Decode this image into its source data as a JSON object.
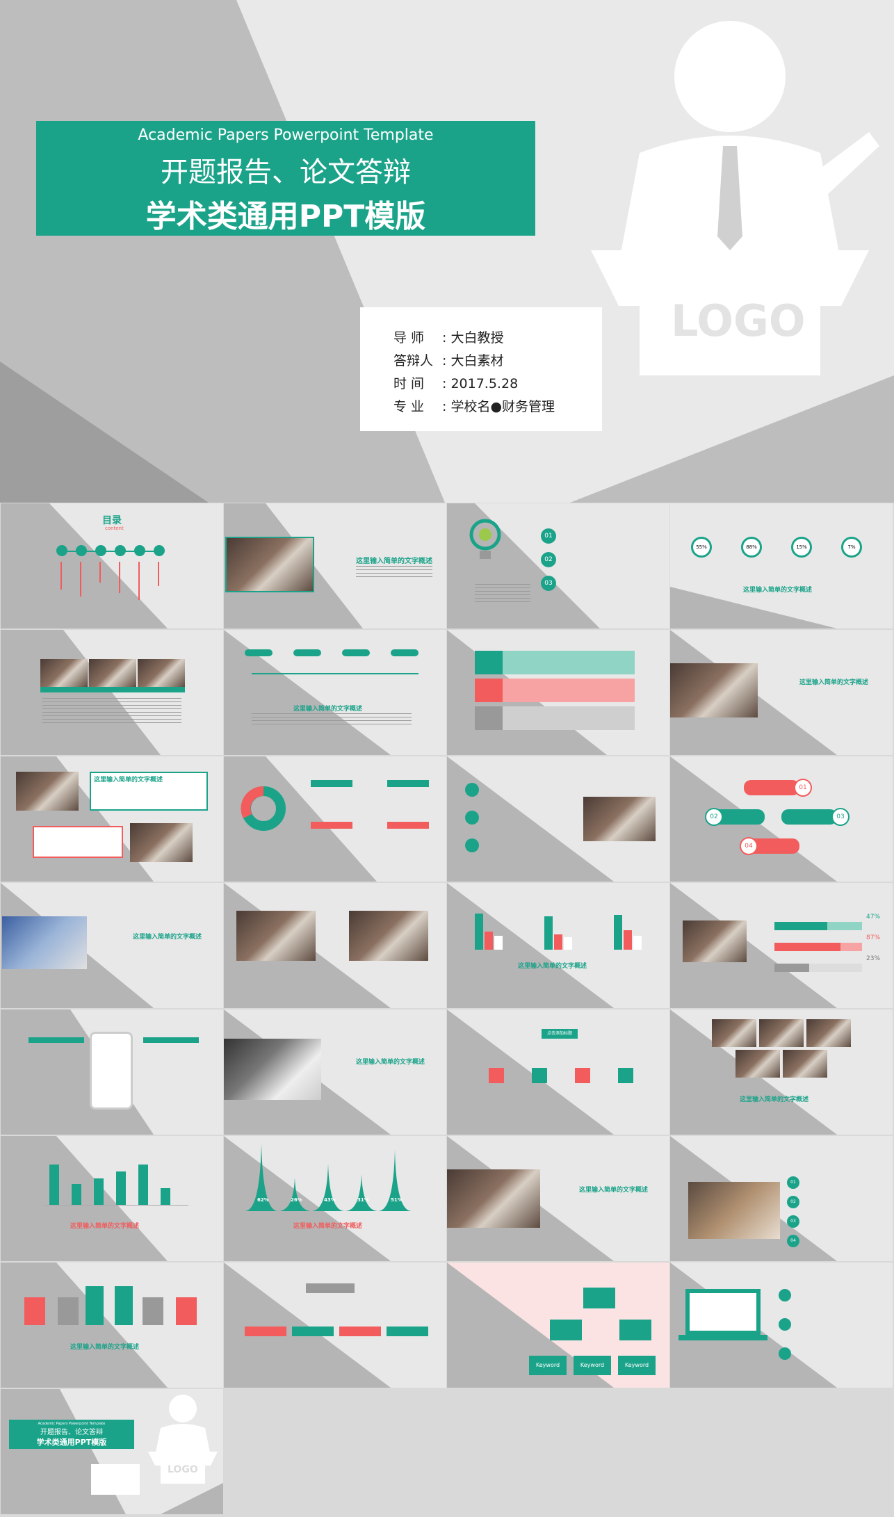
{
  "hero": {
    "subtitle_en": "Academic Papers Powerpoint Template",
    "title_line1": "开题报告、论文答辩",
    "title_line2": "学术类通用PPT模版",
    "logo_text": "LOGO",
    "info": [
      {
        "label": "导 师",
        "value": "大白教授"
      },
      {
        "label": "答辩人",
        "value": "大白素材"
      },
      {
        "label": "时 间",
        "value": "2017.5.28"
      },
      {
        "label": "专 业",
        "value": "学校名●财务管理"
      }
    ]
  },
  "thumbs": {
    "toc_title": "目录",
    "toc_sub": "content",
    "headline": "这里输入简单的文字概述",
    "click_title": "点击添加标题",
    "percents": [
      "55%",
      "88%",
      "15%",
      "7%"
    ],
    "numbers": [
      "01",
      "02",
      "03",
      "04"
    ],
    "stat_values": [
      "47%",
      "87%",
      "23%"
    ],
    "peaks": [
      "62%",
      "26%",
      "43%",
      "31%",
      "51%"
    ],
    "keywords": [
      "Keyword",
      "Keyword",
      "Keyword"
    ],
    "mini_subtitle_en": "Academic Papers Powerpoint Template",
    "mini_title1": "开题报告、论文答辩",
    "mini_title2": "学术类通用PPT模版",
    "mini_logo": "LOGO"
  },
  "colors": {
    "teal": "#1ba38a",
    "red": "#f25c5c",
    "grey": "#b5b5b5"
  }
}
